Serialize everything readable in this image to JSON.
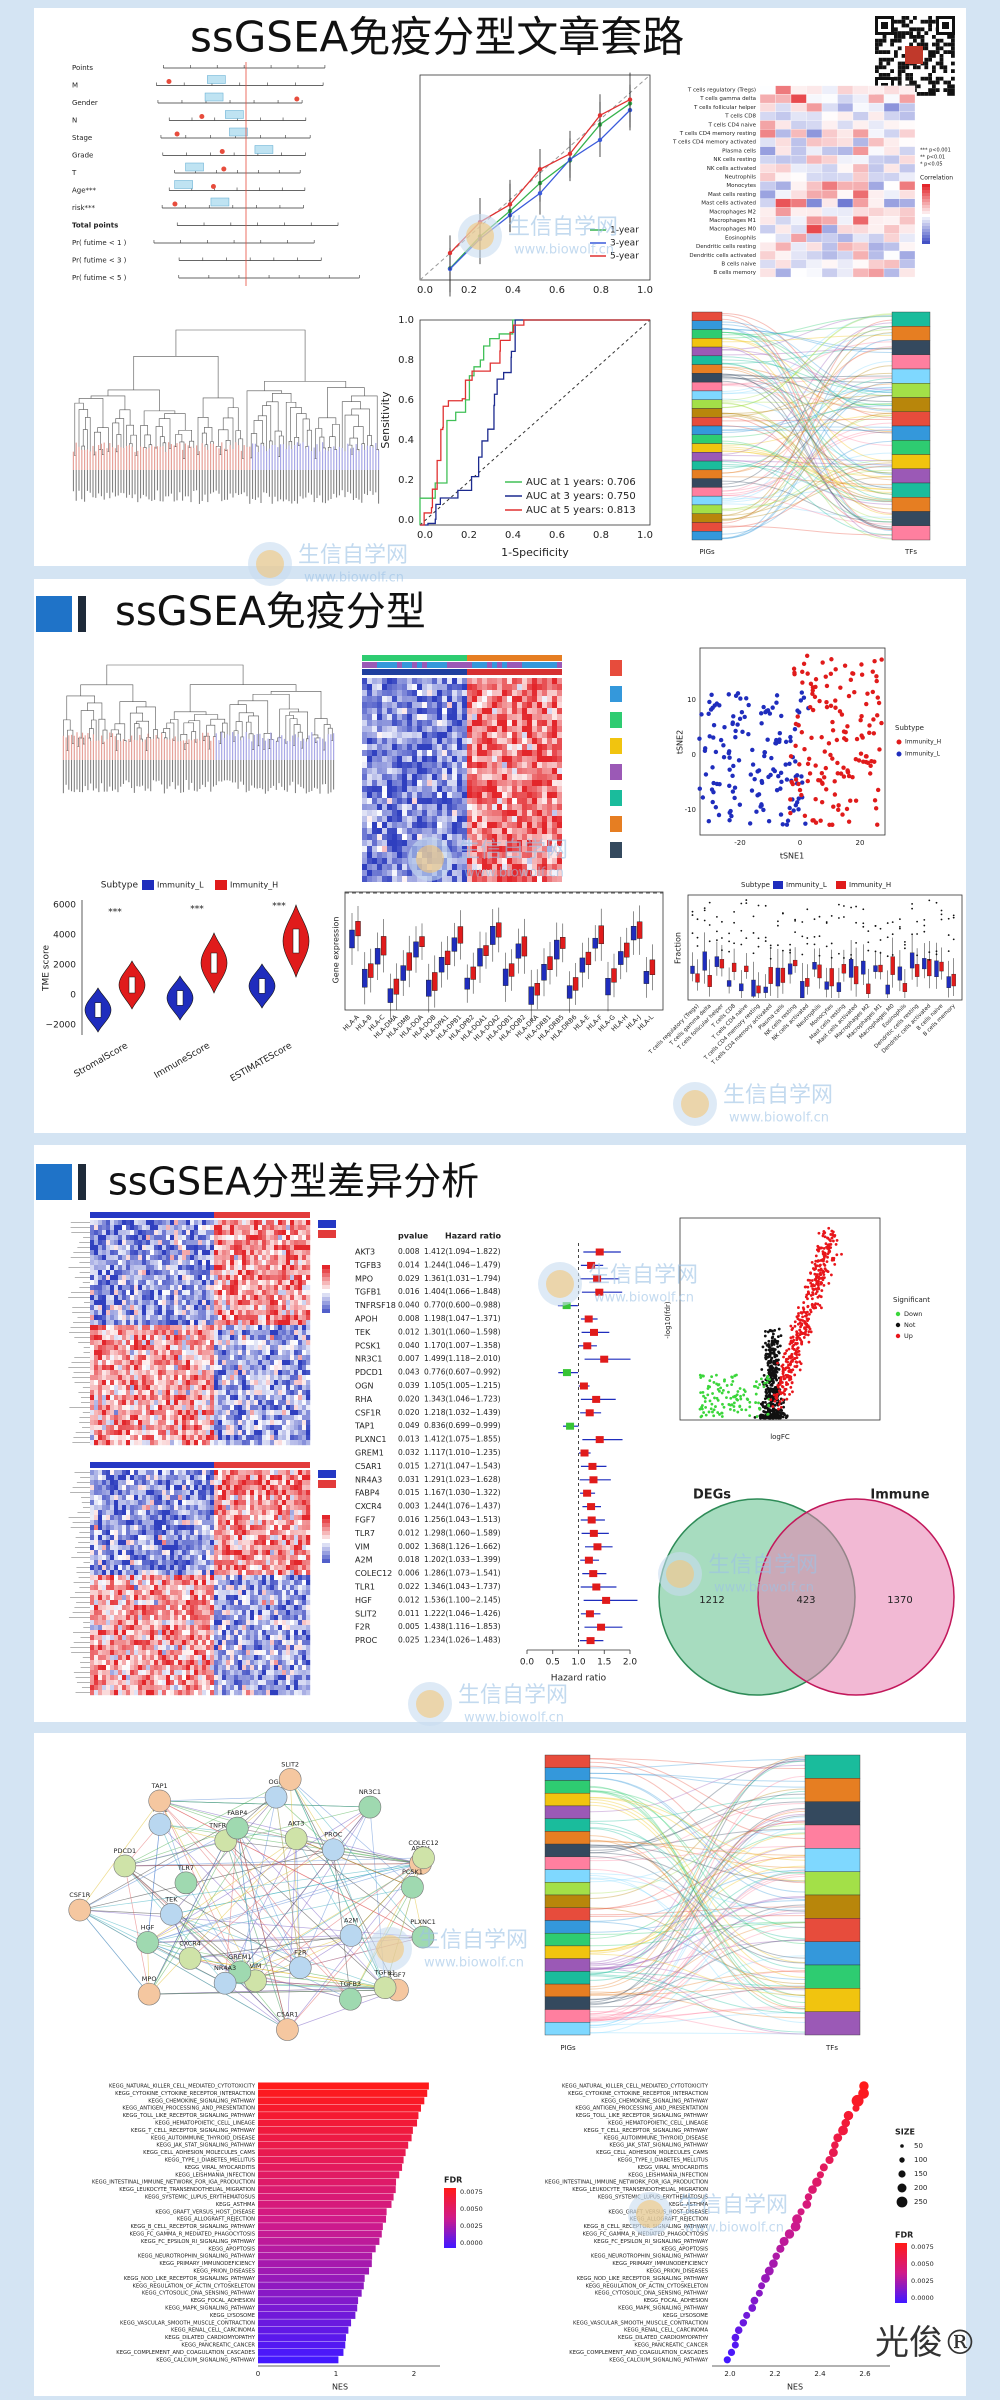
{
  "title": "ssGSEA免疫分型文章套路",
  "sections": [
    {
      "title": "ssGSEA免疫分型"
    },
    {
      "title": "ssGSEA分型差异分析"
    }
  ],
  "watermark": {
    "name": "生信自学网",
    "url": "www.biowolf.cn"
  },
  "signature": "光俊®",
  "immune_cells": [
    "T cells regulatory (Tregs)",
    "T cells gamma delta",
    "T cells follicular helper",
    "T cells CD8",
    "T cells CD4 naive",
    "T cells CD4 memory resting",
    "T cells CD4 memory activated",
    "Plasma cells",
    "NK cells resting",
    "NK cells activated",
    "Neutrophils",
    "Monocytes",
    "Mast cells resting",
    "Mast cells activated",
    "Macrophages M2",
    "Macrophages M1",
    "Macrophages M0",
    "Eosinophils",
    "Dendritic cells resting",
    "Dendritic cells activated",
    "B cells naive",
    "B cells memory"
  ],
  "nomogram": {
    "rows": [
      "Points",
      "M",
      "Gender",
      "N",
      "Stage",
      "Grade",
      "T",
      "Age***",
      "risk***",
      "Total points",
      "Pr( futime < 1 )",
      "Pr( futime < 3 )",
      "Pr( futime < 5 )"
    ]
  },
  "calibration": {
    "ticks": [
      "0.0",
      "0.2",
      "0.4",
      "0.6",
      "0.8",
      "1.0"
    ],
    "legend": [
      "1-year",
      "3-year",
      "5-year"
    ]
  },
  "cell_heatmap": {
    "legend_title": "Correlation",
    "significance": [
      "*** p<0.001",
      "** p<0.01",
      "* p<0.05"
    ]
  },
  "roc": {
    "xlabel": "1-Specificity",
    "ylabel": "Sensitivity",
    "ticks": [
      "0.0",
      "0.2",
      "0.4",
      "0.6",
      "0.8",
      "1.0"
    ],
    "legend": [
      "AUC at 1 years: 0.706",
      "AUC at 3 years: 0.750",
      "AUC at 5 years: 0.813"
    ]
  },
  "sankey": {
    "left": "PIGs",
    "right": "TFs"
  },
  "tsne": {
    "xlabel": "tSNE1",
    "ylabel": "tSNE2",
    "legend_title": "Subtype",
    "legend": [
      "Immunity_H",
      "Immunity_L"
    ],
    "xticks": [
      "-20",
      "0",
      "20"
    ],
    "yticks": [
      "10",
      "0",
      "-10"
    ]
  },
  "violin": {
    "legend_title": "Subtype",
    "legend": [
      "Immunity_L",
      "Immunity_H"
    ],
    "ylabel": "TME score",
    "yticks": [
      "6000",
      "4000",
      "2000",
      "0",
      "−2000"
    ],
    "categories": [
      "StromalScore",
      "ImmuneScore",
      "ESTIMATEScore"
    ],
    "stars": "***"
  },
  "hla": {
    "ylabel": "Gene expression",
    "genes": [
      "HLA-A",
      "HLA-B",
      "HLA-C",
      "HLA-DMA",
      "HLA-DMB",
      "HLA-DOA",
      "HLA-DOB",
      "HLA-DPA1",
      "HLA-DPB1",
      "HLA-DPB2",
      "HLA-DQA1",
      "HLA-DQA2",
      "HLA-DQB1",
      "HLA-DQB2",
      "HLA-DRA",
      "HLA-DRB1",
      "HLA-DRB5",
      "HLA-DRB6",
      "HLA-E",
      "HLA-F",
      "HLA-G",
      "HLA-H",
      "HLA-J",
      "HLA-L"
    ]
  },
  "fraction": {
    "ylabel": "Fraction",
    "legend_title": "Subtype",
    "legend": [
      "Immunity_L",
      "Immunity_H"
    ]
  },
  "forest": {
    "header": [
      "pvalue",
      "Hazard ratio"
    ],
    "rows": [
      {
        "gene": "AKT3",
        "pvalue": "0.008",
        "hr": "1.412(1.094−1.822)"
      },
      {
        "gene": "TGFB3",
        "pvalue": "0.014",
        "hr": "1.244(1.046−1.479)"
      },
      {
        "gene": "MPO",
        "pvalue": "0.029",
        "hr": "1.361(1.031−1.794)"
      },
      {
        "gene": "TGFB1",
        "pvalue": "0.016",
        "hr": "1.404(1.066−1.848)"
      },
      {
        "gene": "TNFRSF18",
        "pvalue": "0.040",
        "hr": "0.770(0.600−0.988)"
      },
      {
        "gene": "APOH",
        "pvalue": "0.008",
        "hr": "1.198(1.047−1.371)"
      },
      {
        "gene": "TEK",
        "pvalue": "0.012",
        "hr": "1.301(1.060−1.598)"
      },
      {
        "gene": "PCSK1",
        "pvalue": "0.040",
        "hr": "1.170(1.007−1.358)"
      },
      {
        "gene": "NR3C1",
        "pvalue": "0.007",
        "hr": "1.499(1.118−2.010)"
      },
      {
        "gene": "PDCD1",
        "pvalue": "0.043",
        "hr": "0.776(0.607−0.992)"
      },
      {
        "gene": "OGN",
        "pvalue": "0.039",
        "hr": "1.105(1.005−1.215)"
      },
      {
        "gene": "RHA",
        "pvalue": "0.020",
        "hr": "1.343(1.046−1.723)"
      },
      {
        "gene": "CSF1R",
        "pvalue": "0.020",
        "hr": "1.218(1.032−1.439)"
      },
      {
        "gene": "TAP1",
        "pvalue": "0.049",
        "hr": "0.836(0.699−0.999)"
      },
      {
        "gene": "PLXNC1",
        "pvalue": "0.013",
        "hr": "1.412(1.075−1.855)"
      },
      {
        "gene": "GREM1",
        "pvalue": "0.032",
        "hr": "1.117(1.010−1.235)"
      },
      {
        "gene": "C5AR1",
        "pvalue": "0.015",
        "hr": "1.271(1.047−1.543)"
      },
      {
        "gene": "NR4A3",
        "pvalue": "0.031",
        "hr": "1.291(1.023−1.628)"
      },
      {
        "gene": "FABP4",
        "pvalue": "0.015",
        "hr": "1.167(1.030−1.322)"
      },
      {
        "gene": "CXCR4",
        "pvalue": "0.003",
        "hr": "1.244(1.076−1.437)"
      },
      {
        "gene": "FGF7",
        "pvalue": "0.016",
        "hr": "1.256(1.043−1.513)"
      },
      {
        "gene": "TLR7",
        "pvalue": "0.012",
        "hr": "1.298(1.060−1.589)"
      },
      {
        "gene": "VIM",
        "pvalue": "0.002",
        "hr": "1.368(1.126−1.662)"
      },
      {
        "gene": "A2M",
        "pvalue": "0.018",
        "hr": "1.202(1.033−1.399)"
      },
      {
        "gene": "COLEC12",
        "pvalue": "0.006",
        "hr": "1.286(1.073−1.541)"
      },
      {
        "gene": "TLR1",
        "pvalue": "0.022",
        "hr": "1.346(1.043−1.737)"
      },
      {
        "gene": "HGF",
        "pvalue": "0.012",
        "hr": "1.536(1.100−2.145)"
      },
      {
        "gene": "SLIT2",
        "pvalue": "0.011",
        "hr": "1.222(1.046−1.426)"
      },
      {
        "gene": "F2R",
        "pvalue": "0.005",
        "hr": "1.438(1.116−1.853)"
      },
      {
        "gene": "PROC",
        "pvalue": "0.025",
        "hr": "1.234(1.026−1.483)"
      }
    ],
    "ticks": [
      "0.0",
      "0.5",
      "1.0",
      "1.5",
      "2.0"
    ],
    "xlabel": "Hazard ratio"
  },
  "volcano": {
    "xlabel": "logFC",
    "ylabel": "-log10(fdr)",
    "legend_title": "Significant",
    "legend": [
      "Down",
      "Not",
      "Up"
    ]
  },
  "venn": {
    "left": "DEGs",
    "right": "Immune",
    "left_only": 1212,
    "both": 423,
    "right_only": 1370
  },
  "ppi": {
    "nodes": [
      "PLXNC1",
      "A2M",
      "FGF7",
      "TGFB1",
      "TGFB3",
      "F2R",
      "C5AR1",
      "VIM",
      "GREM1",
      "NR4A3",
      "MPO",
      "CXCR4",
      "HGF",
      "TEK",
      "CSF1R",
      "PDCD1",
      "TLR7",
      "TLR1",
      "TAP1",
      "TNFRSF18",
      "FABP4",
      "OGN",
      "SLIT2",
      "AKT3",
      "NR3C1",
      "PROC",
      "APOH",
      "COLEC12",
      "PCSK1"
    ]
  },
  "kegg": {
    "terms": [
      "KEGG_NATURAL_KILLER_CELL_MEDIATED_CYTOTOXICITY",
      "KEGG_CYTOKINE_CYTOKINE_RECEPTOR_INTERACTION",
      "KEGG_CHEMOKINE_SIGNALING_PATHWAY",
      "KEGG_ANTIGEN_PROCESSING_AND_PRESENTATION",
      "KEGG_TOLL_LIKE_RECEPTOR_SIGNALING_PATHWAY",
      "KEGG_HEMATOPOIETIC_CELL_LINEAGE",
      "KEGG_T_CELL_RECEPTOR_SIGNALING_PATHWAY",
      "KEGG_AUTOIMMUNE_THYROID_DISEASE",
      "KEGG_JAK_STAT_SIGNALING_PATHWAY",
      "KEGG_CELL_ADHESION_MOLECULES_CAMS",
      "KEGG_TYPE_I_DIABETES_MELLITUS",
      "KEGG_VIRAL_MYOCARDITIS",
      "KEGG_LEISHMANIA_INFECTION",
      "KEGG_INTESTINAL_IMMUNE_NETWORK_FOR_IGA_PRODUCTION",
      "KEGG_LEUKOCYTE_TRANSENDOTHELIAL_MIGRATION",
      "KEGG_SYSTEMIC_LUPUS_ERYTHEMATOSUS",
      "KEGG_ASTHMA",
      "KEGG_GRAFT_VERSUS_HOST_DISEASE",
      "KEGG_ALLOGRAFT_REJECTION",
      "KEGG_B_CELL_RECEPTOR_SIGNALING_PATHWAY",
      "KEGG_FC_GAMMA_R_MEDIATED_PHAGOCYTOSIS",
      "KEGG_FC_EPSILON_RI_SIGNALING_PATHWAY",
      "KEGG_APOPTOSIS",
      "KEGG_NEUROTROPHIN_SIGNALING_PATHWAY",
      "KEGG_PRIMARY_IMMUNODEFICIENCY",
      "KEGG_PRION_DISEASES",
      "KEGG_NOD_LIKE_RECEPTOR_SIGNALING_PATHWAY",
      "KEGG_REGULATION_OF_ACTIN_CYTOSKELETON",
      "KEGG_CYTOSOLIC_DNA_SENSING_PATHWAY",
      "KEGG_FOCAL_ADHESION",
      "KEGG_MAPK_SIGNALING_PATHWAY",
      "KEGG_LYSOSOME",
      "KEGG_VASCULAR_SMOOTH_MUSCLE_CONTRACTION",
      "KEGG_RENAL_CELL_CARCINOMA",
      "KEGG_DILATED_CARDIOMYOPATHY",
      "KEGG_PANCREATIC_CANCER",
      "KEGG_COMPLEMENT_AND_COAGULATION_CASCADES",
      "KEGG_CALCIUM_SIGNALING_PATHWAY"
    ],
    "xlabel": "NES",
    "bar_ticks": [
      "0",
      "1",
      "2"
    ],
    "dot_ticks": [
      "2.0",
      "2.2",
      "2.4",
      "2.6"
    ],
    "legend_title": "FDR",
    "fdr_ticks": [
      "0.0075",
      "0.0050",
      "0.0025",
      "0.0000"
    ],
    "size_title": "SIZE",
    "sizes": [
      "50",
      "100",
      "150",
      "200",
      "250"
    ]
  }
}
